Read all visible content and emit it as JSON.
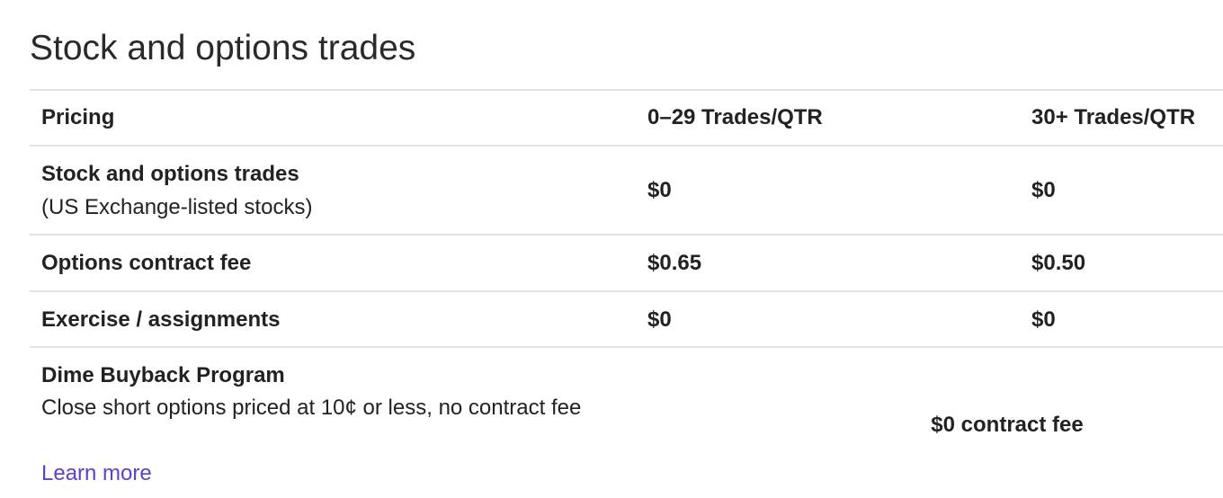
{
  "title": "Stock and options trades",
  "table": {
    "header": [
      "Pricing",
      "0–29 Trades/QTR",
      "30+ Trades/QTR"
    ],
    "rows": [
      {
        "label": "Stock and options trades",
        "sublabel": "(US Exchange-listed stocks)",
        "values": [
          "$0",
          "$0"
        ]
      },
      {
        "label": "Options contract fee",
        "values": [
          "$0.65",
          "$0.50"
        ]
      },
      {
        "label": "Exercise / assignments",
        "values": [
          "$0",
          "$0"
        ]
      },
      {
        "label": "Dime Buyback Program",
        "sublabel": "Close short options priced at 10¢ or less, no contract fee",
        "link": "Learn more",
        "values": [
          "$0 contract fee"
        ]
      }
    ]
  }
}
